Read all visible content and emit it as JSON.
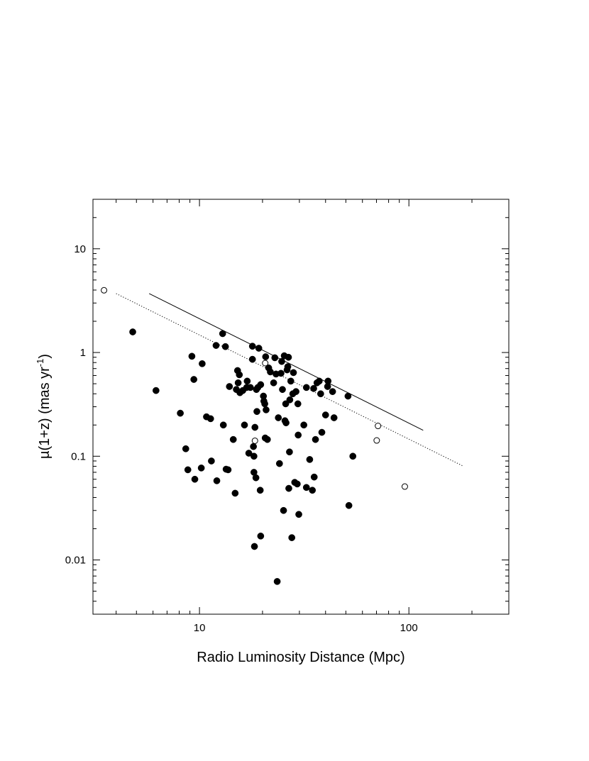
{
  "chart_data": {
    "type": "scatter",
    "title": "",
    "xlabel": "Radio Luminosity Distance (Mpc)",
    "ylabel_parts": {
      "main": "µ(1+z) (mas yr",
      "sup": "-1",
      "close": ")"
    },
    "xscale": "log",
    "yscale": "log",
    "xlim": [
      3.1,
      300
    ],
    "ylim": [
      0.003,
      30
    ],
    "x_tick_labels": [
      {
        "value": 10,
        "label": "10"
      },
      {
        "value": 100,
        "label": "100"
      }
    ],
    "y_tick_labels": [
      {
        "value": 0.01,
        "label": "0.01"
      },
      {
        "value": 0.1,
        "label": "0.1"
      },
      {
        "value": 1,
        "label": "1"
      },
      {
        "value": 10,
        "label": "10"
      }
    ],
    "series": [
      {
        "marker": "filled-circle",
        "points": [
          [
            4.8,
            1.58
          ],
          [
            6.2,
            0.43
          ],
          [
            8.1,
            0.26
          ],
          [
            8.6,
            0.118
          ],
          [
            8.8,
            0.074
          ],
          [
            9.2,
            0.92
          ],
          [
            9.4,
            0.55
          ],
          [
            9.5,
            0.06
          ],
          [
            10.2,
            0.077
          ],
          [
            10.3,
            0.78
          ],
          [
            10.8,
            0.24
          ],
          [
            11.3,
            0.23
          ],
          [
            11.4,
            0.09
          ],
          [
            12,
            1.17
          ],
          [
            12.1,
            0.058
          ],
          [
            12.9,
            1.52
          ],
          [
            13.0,
            0.2
          ],
          [
            13.3,
            1.14
          ],
          [
            13.4,
            0.075
          ],
          [
            13.7,
            0.074
          ],
          [
            13.9,
            0.47
          ],
          [
            14.5,
            0.145
          ],
          [
            14.8,
            0.044
          ],
          [
            15,
            0.44
          ],
          [
            15.2,
            0.67
          ],
          [
            15.3,
            0.51
          ],
          [
            15.6,
            0.41
          ],
          [
            15.5,
            0.61
          ],
          [
            16.1,
            0.43
          ],
          [
            16.4,
            0.2
          ],
          [
            16.8,
            0.46
          ],
          [
            16.9,
            0.53
          ],
          [
            17.2,
            0.107
          ],
          [
            17.5,
            0.46
          ],
          [
            17.9,
            0.86
          ],
          [
            17.9,
            1.15
          ],
          [
            18.1,
            0.124
          ],
          [
            18.2,
            0.1
          ],
          [
            18.2,
            0.07
          ],
          [
            18.3,
            0.0135
          ],
          [
            18.4,
            0.19
          ],
          [
            18.6,
            0.062
          ],
          [
            18.7,
            0.44
          ],
          [
            18.8,
            0.27
          ],
          [
            19,
            0.46
          ],
          [
            19.2,
            1.1
          ],
          [
            19.5,
            0.047
          ],
          [
            19.6,
            0.017
          ],
          [
            19.6,
            0.49
          ],
          [
            20.2,
            0.38
          ],
          [
            20.3,
            0.34
          ],
          [
            20.5,
            0.32
          ],
          [
            20.6,
            0.15
          ],
          [
            20.7,
            0.91
          ],
          [
            20.8,
            0.28
          ],
          [
            21.1,
            0.145
          ],
          [
            21.4,
            0.71
          ],
          [
            21.8,
            0.65
          ],
          [
            22.6,
            0.51
          ],
          [
            22.9,
            0.89
          ],
          [
            23.2,
            0.62
          ],
          [
            23.5,
            0.0062
          ],
          [
            23.8,
            0.235
          ],
          [
            24.1,
            0.085
          ],
          [
            24.5,
            0.63
          ],
          [
            24.7,
            0.82
          ],
          [
            24.9,
            0.44
          ],
          [
            25.2,
            0.03
          ],
          [
            25.4,
            0.93
          ],
          [
            25.6,
            0.22
          ],
          [
            25.8,
            0.32
          ],
          [
            25.9,
            0.21
          ],
          [
            26.2,
            0.68
          ],
          [
            26.4,
            0.73
          ],
          [
            26.6,
            0.9
          ],
          [
            26.7,
            0.049
          ],
          [
            26.9,
            0.11
          ],
          [
            27,
            0.35
          ],
          [
            27.3,
            0.53
          ],
          [
            27.6,
            0.0164
          ],
          [
            27.9,
            0.4
          ],
          [
            28.1,
            0.64
          ],
          [
            28.5,
            0.056
          ],
          [
            28.9,
            0.42
          ],
          [
            29.3,
            0.054
          ],
          [
            29.5,
            0.32
          ],
          [
            29.6,
            0.16
          ],
          [
            29.8,
            0.0275
          ],
          [
            31.5,
            0.2
          ],
          [
            32.4,
            0.46
          ],
          [
            32.4,
            0.05
          ],
          [
            33.6,
            0.093
          ],
          [
            34.6,
            0.047
          ],
          [
            35.1,
            0.45
          ],
          [
            35.3,
            0.063
          ],
          [
            35.8,
            0.145
          ],
          [
            36.4,
            0.51
          ],
          [
            37.3,
            0.53
          ],
          [
            37.9,
            0.4
          ],
          [
            38.4,
            0.17
          ],
          [
            40,
            0.25
          ],
          [
            40.9,
            0.47
          ],
          [
            41.1,
            0.53
          ],
          [
            43.2,
            0.42
          ],
          [
            43.9,
            0.235
          ],
          [
            51.2,
            0.38
          ],
          [
            51.7,
            0.0335
          ],
          [
            54,
            0.1
          ]
        ]
      },
      {
        "marker": "open-circle",
        "points": [
          [
            3.5,
            3.98
          ],
          [
            18.4,
            0.141
          ],
          [
            20.6,
            0.79
          ],
          [
            70.2,
            0.142
          ],
          [
            71.2,
            0.196
          ],
          [
            95.6,
            0.051
          ]
        ]
      }
    ],
    "lines": [
      {
        "style": "solid",
        "x": [
          5.75,
          117
        ],
        "y": [
          3.7,
          0.178
        ]
      },
      {
        "style": "dotted",
        "x": [
          4.0,
          180
        ],
        "y": [
          3.7,
          0.081
        ]
      }
    ]
  }
}
